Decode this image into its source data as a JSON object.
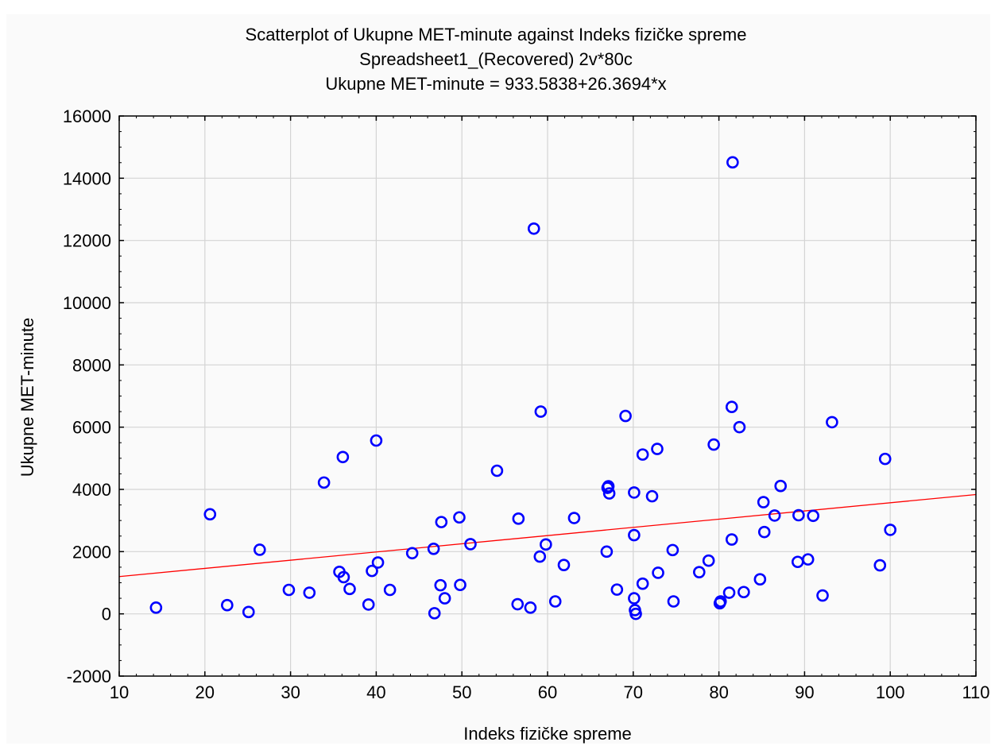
{
  "chart_data": {
    "type": "scatter",
    "title": "Scatterplot of Ukupne MET-minute against Indeks fizičke spreme",
    "subtitle": "Spreadsheet1_(Recovered) 2v*80c",
    "equation": "Ukupne MET-minute = 933.5838+26.3694*x",
    "xlabel": "Indeks fizičke spreme",
    "ylabel": "Ukupne MET-minute",
    "xlim": [
      10,
      110
    ],
    "ylim": [
      -2000,
      16000
    ],
    "xticks": [
      "10",
      "20",
      "30",
      "40",
      "50",
      "60",
      "70",
      "80",
      "90",
      "100",
      "110"
    ],
    "yticks": [
      "-2000",
      "0",
      "2000",
      "4000",
      "6000",
      "8000",
      "10000",
      "12000",
      "14000",
      "16000"
    ],
    "grid": true,
    "marker_color": "#0000ff",
    "fit_color": "#ff0000",
    "fit": {
      "intercept": 933.5838,
      "slope": 26.3694
    },
    "points": [
      [
        14.3,
        200
      ],
      [
        20.6,
        3200
      ],
      [
        22.6,
        280
      ],
      [
        25.1,
        60
      ],
      [
        26.4,
        2060
      ],
      [
        29.8,
        770
      ],
      [
        32.2,
        680
      ],
      [
        33.9,
        4220
      ],
      [
        35.7,
        1350
      ],
      [
        36.1,
        5040
      ],
      [
        36.2,
        1180
      ],
      [
        36.9,
        800
      ],
      [
        39.1,
        300
      ],
      [
        39.5,
        1380
      ],
      [
        40.0,
        5570
      ],
      [
        40.2,
        1650
      ],
      [
        41.6,
        770
      ],
      [
        44.2,
        1950
      ],
      [
        46.7,
        2090
      ],
      [
        46.8,
        20
      ],
      [
        47.5,
        920
      ],
      [
        47.6,
        2950
      ],
      [
        48.0,
        500
      ],
      [
        49.7,
        3100
      ],
      [
        49.8,
        930
      ],
      [
        51.0,
        2240
      ],
      [
        54.1,
        4600
      ],
      [
        56.5,
        310
      ],
      [
        56.6,
        3060
      ],
      [
        58.0,
        200
      ],
      [
        58.4,
        12380
      ],
      [
        59.1,
        1840
      ],
      [
        59.2,
        6500
      ],
      [
        59.8,
        2230
      ],
      [
        60.9,
        400
      ],
      [
        61.9,
        1570
      ],
      [
        63.1,
        3080
      ],
      [
        66.9,
        2000
      ],
      [
        67.0,
        4050
      ],
      [
        67.1,
        4100
      ],
      [
        67.2,
        3870
      ],
      [
        68.1,
        780
      ],
      [
        69.1,
        6360
      ],
      [
        70.1,
        3900
      ],
      [
        70.1,
        2530
      ],
      [
        70.1,
        500
      ],
      [
        70.2,
        120
      ],
      [
        70.3,
        0
      ],
      [
        71.1,
        5120
      ],
      [
        71.1,
        970
      ],
      [
        72.2,
        3780
      ],
      [
        72.8,
        5300
      ],
      [
        72.9,
        1320
      ],
      [
        74.6,
        2050
      ],
      [
        74.7,
        400
      ],
      [
        77.7,
        1340
      ],
      [
        78.8,
        1710
      ],
      [
        79.4,
        5440
      ],
      [
        80.1,
        340
      ],
      [
        80.2,
        400
      ],
      [
        81.2,
        680
      ],
      [
        81.5,
        6650
      ],
      [
        81.5,
        2390
      ],
      [
        81.6,
        14510
      ],
      [
        82.4,
        6000
      ],
      [
        82.9,
        700
      ],
      [
        84.8,
        1110
      ],
      [
        85.2,
        3590
      ],
      [
        85.3,
        2630
      ],
      [
        86.5,
        3160
      ],
      [
        87.2,
        4110
      ],
      [
        89.2,
        1670
      ],
      [
        89.3,
        3170
      ],
      [
        90.4,
        1750
      ],
      [
        91.0,
        3150
      ],
      [
        92.1,
        590
      ],
      [
        93.2,
        6160
      ],
      [
        98.8,
        1560
      ],
      [
        99.4,
        4980
      ],
      [
        100.0,
        2700
      ]
    ]
  }
}
